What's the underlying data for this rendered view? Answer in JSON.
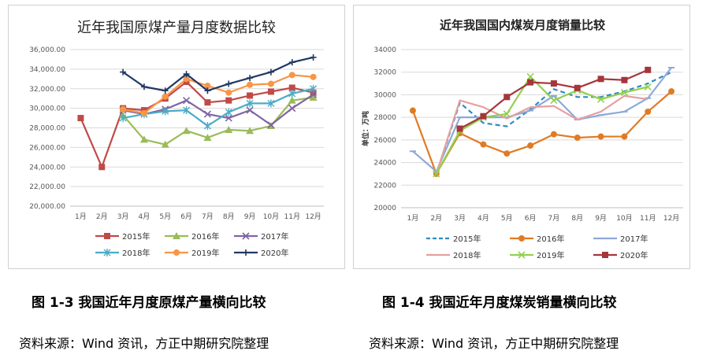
{
  "chart_data": [
    {
      "type": "line",
      "title": "近年我国原煤产量月度数据比较",
      "ylabel": "",
      "xlabel": "",
      "ylim": [
        20000,
        36000
      ],
      "yticks": [
        20000,
        22000,
        24000,
        26000,
        28000,
        30000,
        32000,
        34000,
        36000
      ],
      "ytick_labels": [
        "20,000.00",
        "22,000.00",
        "24,000.00",
        "26,000.00",
        "28,000.00",
        "30,000.00",
        "32,000.00",
        "34,000.00",
        "36,000.00"
      ],
      "categories": [
        "1月",
        "2月",
        "3月",
        "4月",
        "5月",
        "6月",
        "7月",
        "8月",
        "9月",
        "10月",
        "11月",
        "12月"
      ],
      "grid": true,
      "legend_position": "bottom",
      "series": [
        {
          "name": "2015年",
          "color": "#be4b48",
          "marker": "square",
          "dash": false,
          "values": [
            29000,
            24000,
            30000,
            29800,
            31000,
            32700,
            30600,
            30800,
            31300,
            31700,
            32100,
            31600
          ]
        },
        {
          "name": "2016年",
          "color": "#9bbb59",
          "marker": "triangle",
          "dash": false,
          "values": [
            null,
            null,
            29300,
            26800,
            26300,
            27700,
            27000,
            27800,
            27700,
            28200,
            30800,
            31100
          ]
        },
        {
          "name": "2017年",
          "color": "#8064a2",
          "marker": "x",
          "dash": false,
          "values": [
            null,
            null,
            29800,
            29400,
            29900,
            30800,
            29400,
            29000,
            29800,
            28300,
            30000,
            31400
          ]
        },
        {
          "name": "2018年",
          "color": "#4bacc6",
          "marker": "star",
          "dash": false,
          "values": [
            null,
            null,
            29000,
            29400,
            29700,
            29800,
            28200,
            29600,
            30500,
            30500,
            31500,
            32000
          ]
        },
        {
          "name": "2019年",
          "color": "#f79646",
          "marker": "circle",
          "dash": false,
          "values": [
            null,
            null,
            29900,
            29500,
            31200,
            33000,
            32300,
            31600,
            32400,
            32500,
            33400,
            33200
          ]
        },
        {
          "name": "2020年",
          "color": "#1f3864",
          "marker": "plus",
          "dash": false,
          "values": [
            null,
            null,
            33700,
            32200,
            31800,
            33500,
            31800,
            32500,
            33100,
            33700,
            34700,
            35200
          ]
        }
      ]
    },
    {
      "type": "line",
      "title": "近年我国国内煤炭月度销量比较",
      "ylabel": "单位：万吨",
      "xlabel": "",
      "ylim": [
        20000,
        34000
      ],
      "yticks": [
        20000,
        22000,
        24000,
        26000,
        28000,
        30000,
        32000,
        34000
      ],
      "ytick_labels": [
        "20000",
        "22000",
        "24000",
        "26000",
        "28000",
        "30000",
        "32000",
        "34000"
      ],
      "categories": [
        "1月",
        "2月",
        "3月",
        "4月",
        "5月",
        "6月",
        "7月",
        "8月",
        "9月",
        "10月",
        "11月",
        "12月"
      ],
      "grid": true,
      "legend_position": "bottom",
      "series": [
        {
          "name": "2015年",
          "color": "#2e8bc0",
          "marker": "none",
          "dash": true,
          "values": [
            null,
            23000,
            29300,
            27500,
            27200,
            28700,
            30500,
            29800,
            29800,
            30300,
            31000,
            32000
          ]
        },
        {
          "name": "2016年",
          "color": "#e07b24",
          "marker": "circle",
          "dash": false,
          "values": [
            28600,
            23000,
            26600,
            25600,
            24800,
            25500,
            26500,
            26200,
            26300,
            26300,
            28500,
            30300
          ]
        },
        {
          "name": "2017年",
          "color": "#8ea9d8",
          "marker": "dash",
          "dash": false,
          "values": [
            25000,
            23200,
            28000,
            28000,
            28000,
            28600,
            29900,
            27800,
            28200,
            28500,
            29700,
            32400
          ]
        },
        {
          "name": "2018年",
          "color": "#e6a0a0",
          "marker": "none",
          "dash": false,
          "values": [
            null,
            23000,
            29500,
            28900,
            27900,
            28900,
            29000,
            27800,
            28500,
            29900,
            29600,
            null
          ]
        },
        {
          "name": "2019年",
          "color": "#92d050",
          "marker": "x",
          "dash": false,
          "values": [
            null,
            23000,
            26800,
            28000,
            28300,
            31600,
            29500,
            30400,
            29600,
            30200,
            30700,
            null
          ]
        },
        {
          "name": "2020年",
          "color": "#a5363a",
          "marker": "square",
          "dash": false,
          "values": [
            null,
            null,
            27000,
            28100,
            29800,
            31100,
            31000,
            30600,
            31400,
            31300,
            32200,
            null
          ]
        }
      ]
    }
  ],
  "captions": {
    "left": "图 1-3  我国近年月度原煤产量横向比较",
    "right": "图 1-4  我国近年月度煤炭销量横向比较"
  },
  "sources": {
    "left": "资料来源：Wind 资讯，方正中期研究院整理",
    "right": "资料来源：Wind 资讯，方正中期研究院整理"
  }
}
